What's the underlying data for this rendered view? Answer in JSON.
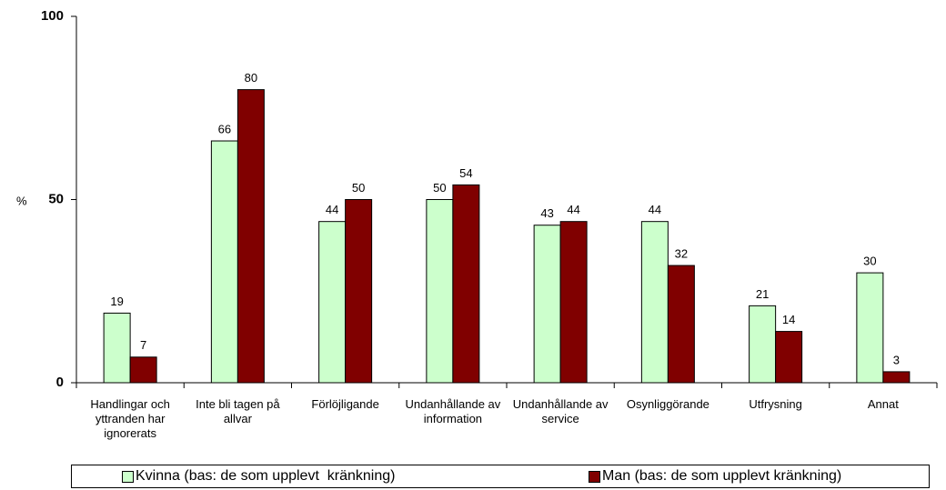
{
  "chart_data": {
    "type": "bar",
    "y_label": "%",
    "categories": [
      "Handlingar och yttranden har ignorerats",
      "Inte bli tagen på allvar",
      "Förlöjligande",
      "Undanhållande av information",
      "Undanhållande av service",
      "Osynliggörande",
      "Utfrysning",
      "Annat"
    ],
    "series": [
      {
        "name": "Kvinna (bas: de som upplevt  kränkning)",
        "color": "#ccffcc",
        "values": [
          19,
          66,
          44,
          50,
          43,
          44,
          21,
          30
        ]
      },
      {
        "name": "Man (bas: de som upplevt kränkning)",
        "color": "#800000",
        "values": [
          7,
          80,
          50,
          54,
          44,
          32,
          14,
          3
        ]
      }
    ],
    "ylim": [
      0,
      100
    ],
    "yticks": [
      0,
      50,
      100
    ],
    "grid": false,
    "legend": "bottom"
  }
}
